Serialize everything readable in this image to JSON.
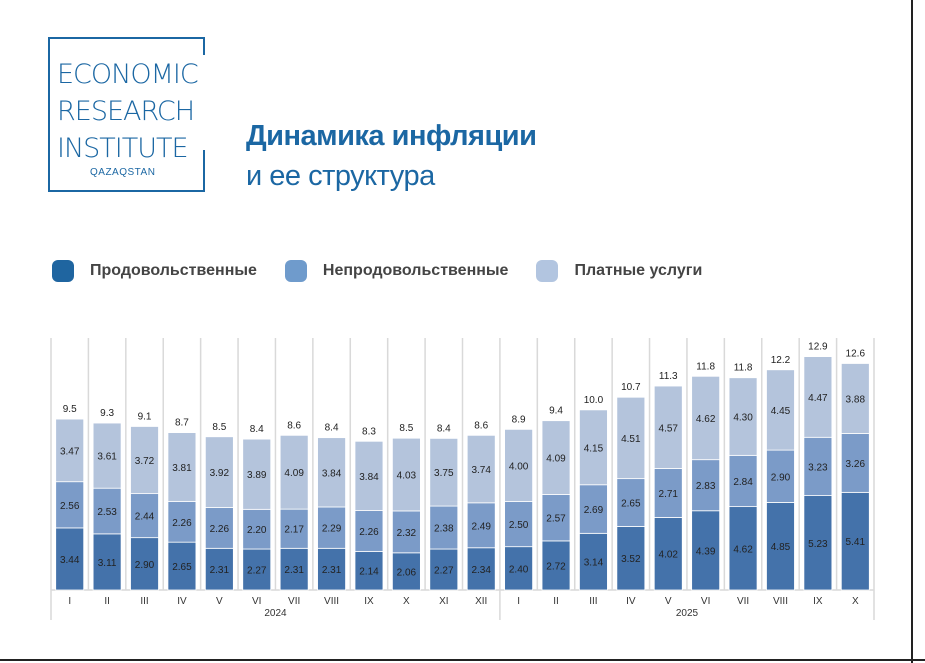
{
  "logo": {
    "lines": [
      "ECONOMIC",
      "RESEARCH",
      "INSTITUTE"
    ],
    "sub": "QAZAQSTAN"
  },
  "title": {
    "line1": "Динамика инфляции",
    "line2": "и ее структура"
  },
  "colors": {
    "food": "#4472aa",
    "nonfood": "#7b9bc8",
    "services": "#b4c4dc"
  },
  "chart_data": {
    "type": "bar",
    "stacked": true,
    "categories": [
      "I",
      "II",
      "III",
      "IV",
      "V",
      "VI",
      "VII",
      "VIII",
      "IX",
      "X",
      "XI",
      "XII",
      "I",
      "II",
      "III",
      "IV",
      "V",
      "VI",
      "VII",
      "VIII",
      "IX",
      "X"
    ],
    "groups": [
      {
        "label": "2024",
        "count": 12
      },
      {
        "label": "2025",
        "count": 10
      }
    ],
    "series": [
      {
        "name": "Продовольственные",
        "values": [
          3.44,
          3.11,
          2.9,
          2.65,
          2.31,
          2.27,
          2.31,
          2.31,
          2.14,
          2.06,
          2.27,
          2.34,
          2.4,
          2.72,
          3.14,
          3.52,
          4.02,
          4.39,
          4.62,
          4.85,
          5.23,
          5.41
        ]
      },
      {
        "name": "Непродовольственные",
        "values": [
          2.56,
          2.53,
          2.44,
          2.26,
          2.26,
          2.2,
          2.17,
          2.29,
          2.26,
          2.32,
          2.38,
          2.49,
          2.5,
          2.57,
          2.69,
          2.65,
          2.71,
          2.83,
          2.84,
          2.9,
          3.23,
          3.26
        ]
      },
      {
        "name": "Платные услуги",
        "values": [
          3.47,
          3.61,
          3.72,
          3.81,
          3.92,
          3.89,
          4.09,
          3.84,
          3.84,
          4.03,
          3.75,
          3.74,
          4.0,
          4.09,
          4.15,
          4.51,
          4.57,
          4.62,
          4.3,
          4.45,
          4.47,
          3.88
        ]
      }
    ],
    "totals": [
      "9.5",
      "9.3",
      "9.1",
      "8.7",
      "8.5",
      "8.4",
      "8.6",
      "8.4",
      "8.3",
      "8.5",
      "8.4",
      "8.6",
      "8.9",
      "9.4",
      "10.0",
      "10.7",
      "11.3",
      "11.8",
      "11.8",
      "12.2",
      "12.9",
      "12.6"
    ],
    "value_labels": [
      [
        "3.44",
        "3.11",
        "2.90",
        "2.65",
        "2.31",
        "2.27",
        "2.31",
        "2.31",
        "2.14",
        "2.06",
        "2.27",
        "2.34",
        "2.40",
        "2.72",
        "3.14",
        "3.52",
        "4.02",
        "4.39",
        "4.62",
        "4.85",
        "5.23",
        "5.41"
      ],
      [
        "2.56",
        "2.53",
        "2.44",
        "2.26",
        "2.26",
        "2.20",
        "2.17",
        "2.29",
        "2.26",
        "2.32",
        "2.38",
        "2.49",
        "2.50",
        "2.57",
        "2.69",
        "2.65",
        "2.71",
        "2.83",
        "2.84",
        "2.90",
        "3.23",
        "3.26"
      ],
      [
        "3.47",
        "3.61",
        "3.72",
        "3.81",
        "3.92",
        "3.89",
        "4.09",
        "3.84",
        "3.84",
        "4.03",
        "3.75",
        "3.74",
        "4.00",
        "4.09",
        "4.15",
        "4.51",
        "4.57",
        "4.62",
        "4.30",
        "4.45",
        "4.47",
        "3.88"
      ]
    ],
    "legend_position": "top-left",
    "grid": "vertical separators",
    "ylim": [
      0,
      14
    ]
  }
}
